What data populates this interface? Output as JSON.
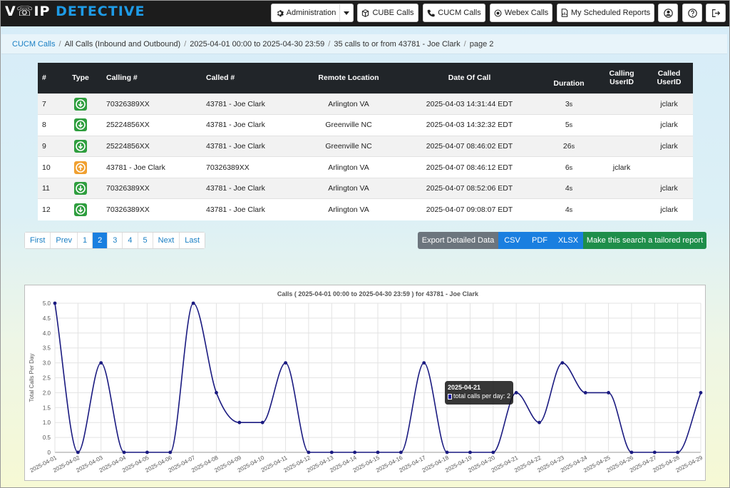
{
  "brand": {
    "part1": "V",
    "part2": "IP",
    "part3": "DETECTIVE"
  },
  "nav": {
    "administration": "Administration",
    "cube_calls": "CUBE Calls",
    "cucm_calls": "CUCM Calls",
    "webex_calls": "Webex Calls",
    "scheduled_reports": "My Scheduled Reports"
  },
  "breadcrumb": {
    "root": "CUCM Calls",
    "scope": "All Calls (Inbound and Outbound)",
    "range": "2025-04-01 00:00 to 2025-04-30 23:59",
    "filter": "35 calls to or from 43781 - Joe Clark",
    "page": "page 2"
  },
  "table": {
    "headers": {
      "num": "#",
      "type": "Type",
      "calling": "Calling #",
      "called": "Called #",
      "remote": "Remote Location",
      "date": "Date Of Call",
      "duration": "Duration",
      "calling_uid_1": "Calling",
      "calling_uid_2": "UserID",
      "called_uid_1": "Called",
      "called_uid_2": "UserID"
    },
    "rows": [
      {
        "num": "7",
        "dir": "in",
        "calling": "70326389XX",
        "called": "43781 - Joe Clark",
        "remote": "Arlington VA",
        "date": "2025-04-03 14:31:44 EDT",
        "dur_n": "3",
        "dur_u": "s",
        "calling_uid": "",
        "called_uid": "jclark"
      },
      {
        "num": "8",
        "dir": "in",
        "calling": "25224856XX",
        "called": "43781 - Joe Clark",
        "remote": "Greenville NC",
        "date": "2025-04-03 14:32:32 EDT",
        "dur_n": "5",
        "dur_u": "s",
        "calling_uid": "",
        "called_uid": "jclark"
      },
      {
        "num": "9",
        "dir": "in",
        "calling": "25224856XX",
        "called": "43781 - Joe Clark",
        "remote": "Greenville NC",
        "date": "2025-04-07 08:46:02 EDT",
        "dur_n": "26",
        "dur_u": "s",
        "calling_uid": "",
        "called_uid": "jclark"
      },
      {
        "num": "10",
        "dir": "out",
        "calling": "43781 - Joe Clark",
        "called": "70326389XX",
        "remote": "Arlington VA",
        "date": "2025-04-07 08:46:12 EDT",
        "dur_n": "6",
        "dur_u": "s",
        "calling_uid": "jclark",
        "called_uid": ""
      },
      {
        "num": "11",
        "dir": "in",
        "calling": "70326389XX",
        "called": "43781 - Joe Clark",
        "remote": "Arlington VA",
        "date": "2025-04-07 08:52:06 EDT",
        "dur_n": "4",
        "dur_u": "s",
        "calling_uid": "",
        "called_uid": "jclark"
      },
      {
        "num": "12",
        "dir": "in",
        "calling": "70326389XX",
        "called": "43781 - Joe Clark",
        "remote": "Arlington VA",
        "date": "2025-04-07 09:08:07 EDT",
        "dur_n": "4",
        "dur_u": "s",
        "calling_uid": "",
        "called_uid": "jclark"
      }
    ]
  },
  "pagination": {
    "first": "First",
    "prev": "Prev",
    "pages": [
      "1",
      "2",
      "3",
      "4",
      "5"
    ],
    "current": "2",
    "next": "Next",
    "last": "Last"
  },
  "export": {
    "label": "Export Detailed Data",
    "csv": "CSV",
    "pdf": "PDF",
    "xlsx": "XLSX",
    "tailored": "Make this search a tailored report"
  },
  "colors": {
    "brand_blue": "#1e9be6",
    "export_gray": "#6c757d",
    "export_blue": "#1a7fe0",
    "tailored_green": "#1e8e4a",
    "line": "#1a1a80"
  },
  "tooltip": {
    "date": "2025-04-21",
    "label": "total calls per day: 2"
  },
  "chart_data": {
    "type": "line",
    "title": "Calls ( 2025-04-01 00:00 to 2025-04-30 23:59 ) for 43781 - Joe Clark",
    "ylabel": "Total Calls Per Day",
    "xlabel": "",
    "ylim": [
      0,
      5
    ],
    "yticks": [
      "0",
      "0.5",
      "1.0",
      "1.5",
      "2.0",
      "2.5",
      "3.0",
      "3.5",
      "4.0",
      "4.5",
      "5.0"
    ],
    "categories": [
      "2025-04-01",
      "2025-04-02",
      "2025-04-03",
      "2025-04-04",
      "2025-04-05",
      "2025-04-06",
      "2025-04-07",
      "2025-04-08",
      "2025-04-09",
      "2025-04-10",
      "2025-04-11",
      "2025-04-12",
      "2025-04-13",
      "2025-04-14",
      "2025-04-15",
      "2025-04-16",
      "2025-04-17",
      "2025-04-18",
      "2025-04-19",
      "2025-04-20",
      "2025-04-21",
      "2025-04-22",
      "2025-04-23",
      "2025-04-24",
      "2025-04-25",
      "2025-04-26",
      "2025-04-27",
      "2025-04-28",
      "2025-04-29"
    ],
    "series": [
      {
        "name": "total calls per day",
        "values": [
          5,
          0,
          3,
          0,
          0,
          0,
          5,
          2,
          1,
          1,
          3,
          0,
          0,
          0,
          0,
          0,
          3,
          0,
          0,
          0,
          2,
          1,
          3,
          2,
          2,
          0,
          0,
          0,
          2
        ]
      }
    ],
    "grid": true
  }
}
